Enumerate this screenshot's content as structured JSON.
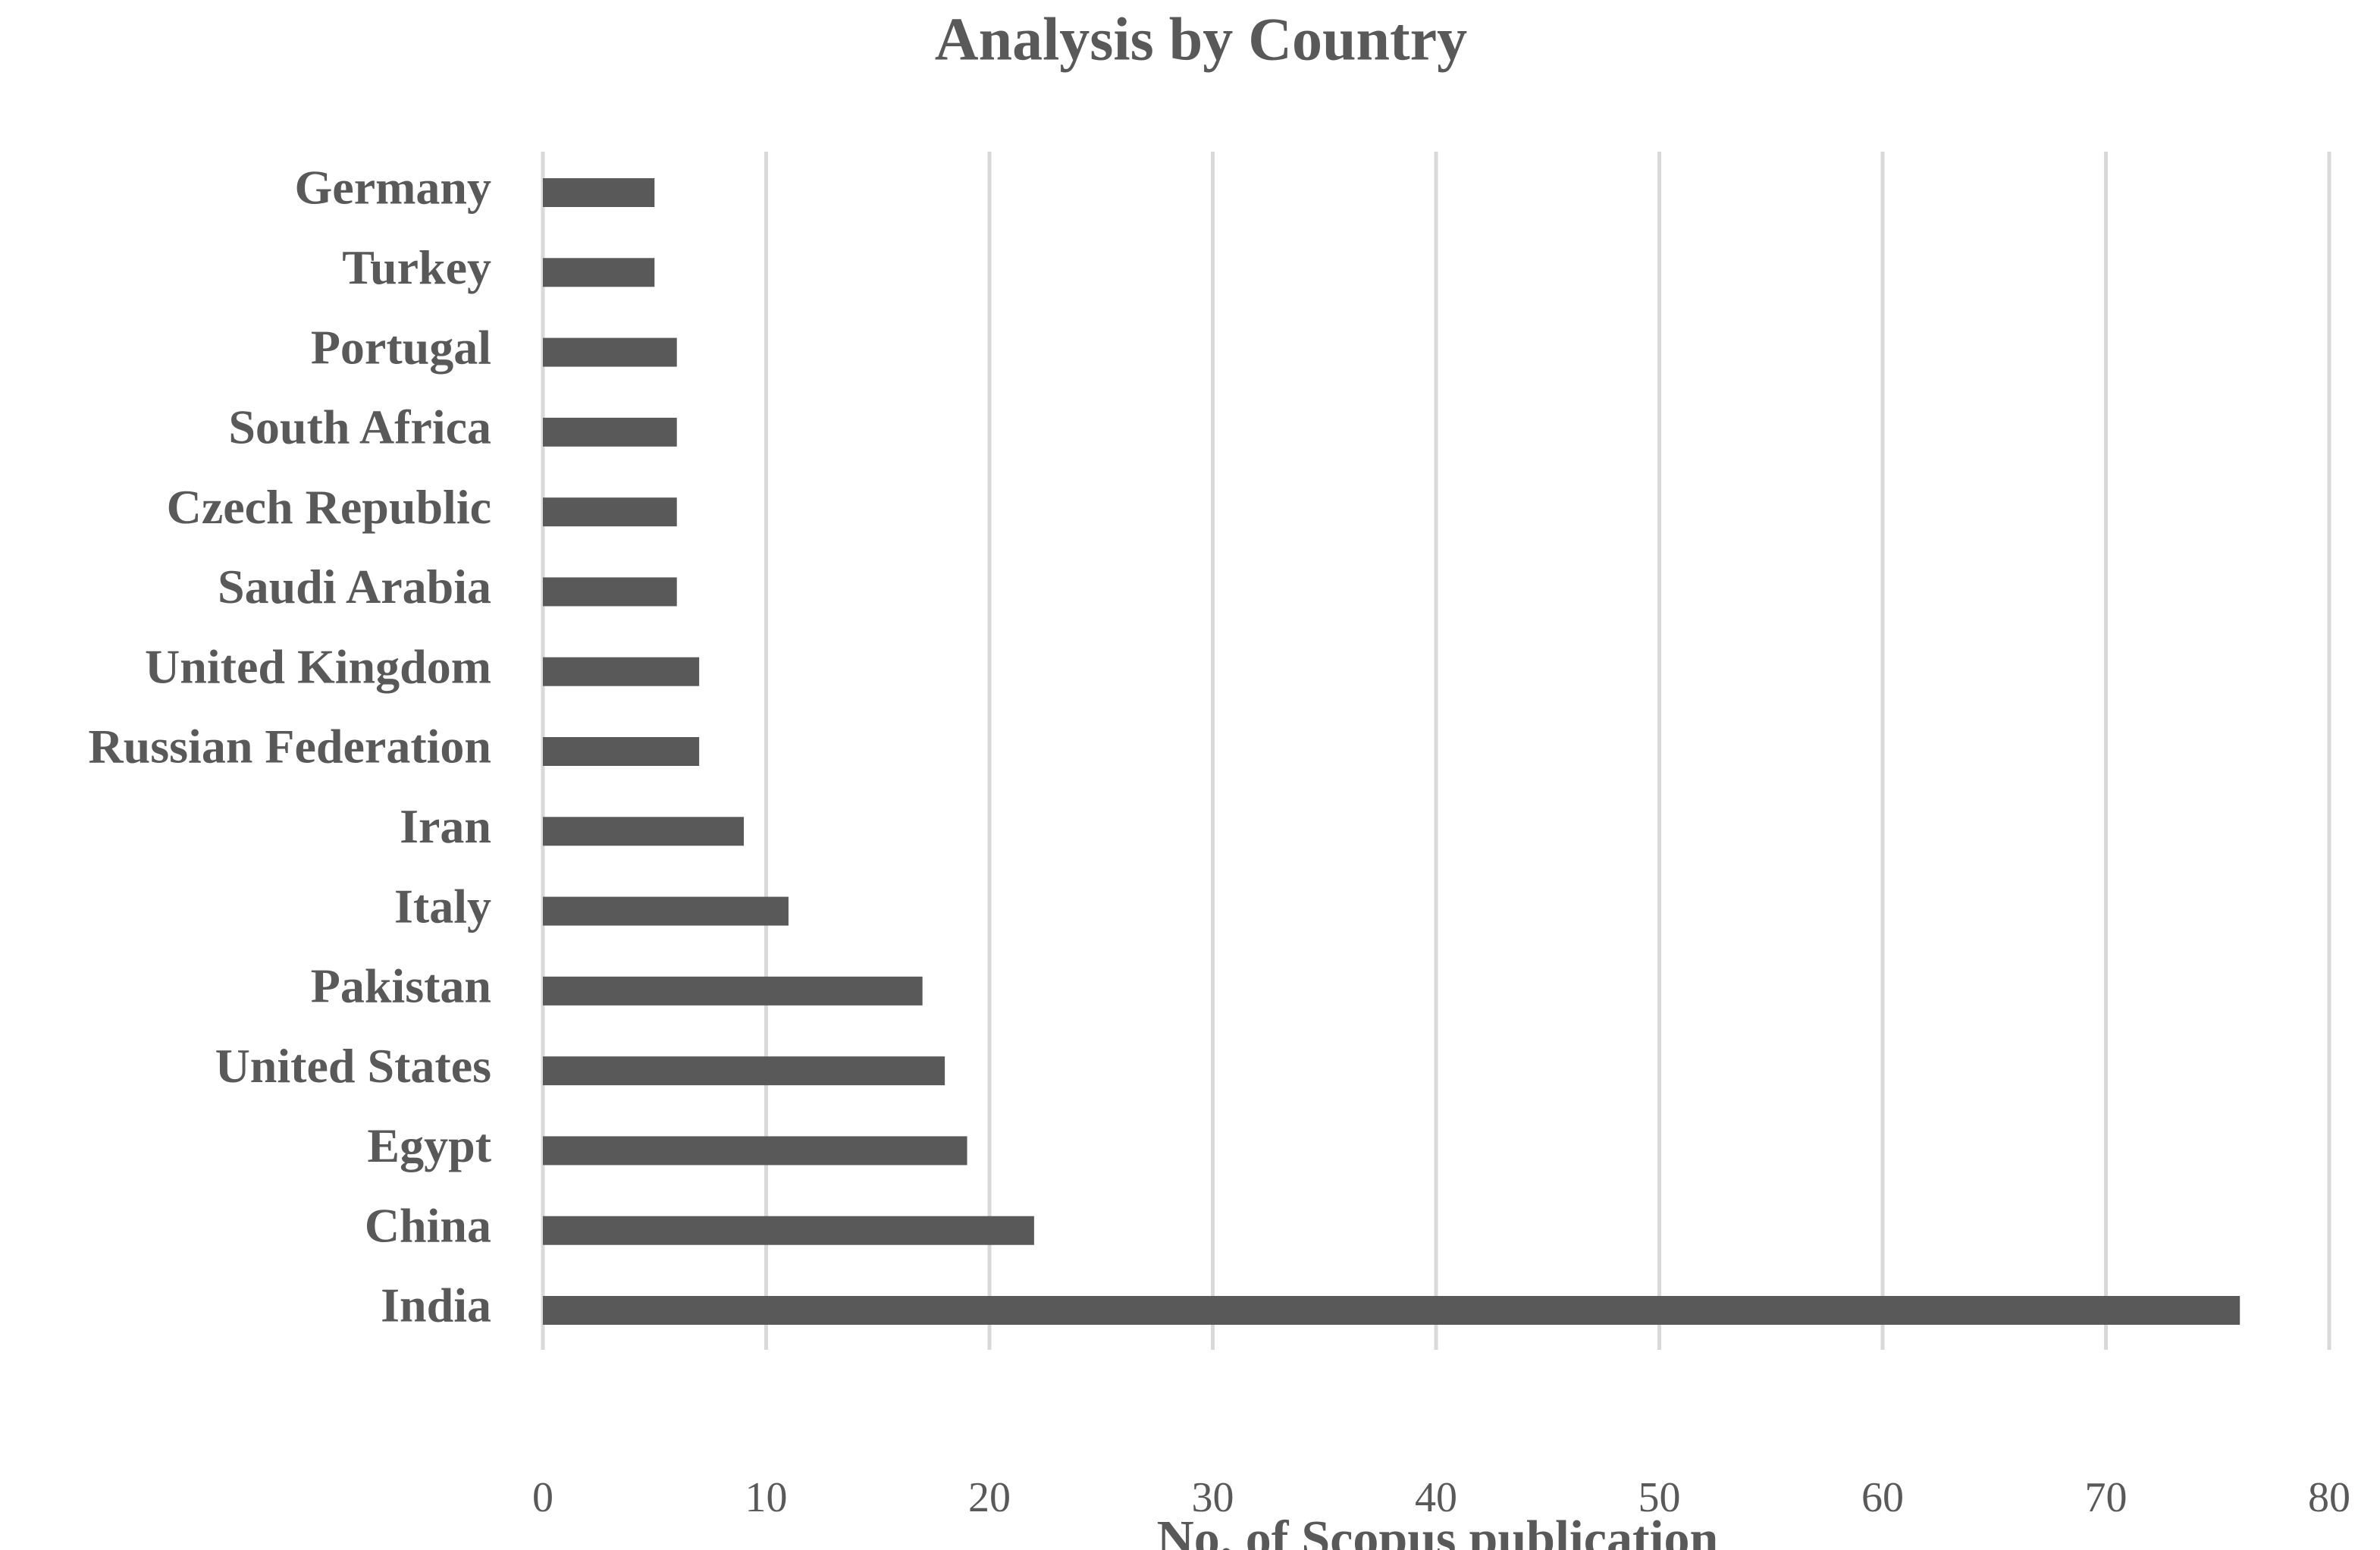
{
  "chart_data": {
    "type": "bar",
    "orientation": "horizontal",
    "title": "Analysis by Country",
    "x_label": "No. of Scopus publication",
    "categories": [
      "Germany",
      "Turkey",
      "Portugal",
      "South Africa",
      "Czech Republic",
      "Saudi Arabia",
      "United Kingdom",
      "Russian Federation",
      "Iran",
      "Italy",
      "Pakistan",
      "United States",
      "Egypt",
      "China",
      "India"
    ],
    "values": [
      5,
      5,
      6,
      6,
      6,
      6,
      7,
      7,
      9,
      11,
      17,
      18,
      19,
      22,
      76
    ],
    "color": "#595959",
    "xlim": [
      0,
      80
    ],
    "xticks": [
      0,
      10,
      20,
      30,
      40,
      50,
      60,
      70,
      80
    ],
    "grid": true
  }
}
